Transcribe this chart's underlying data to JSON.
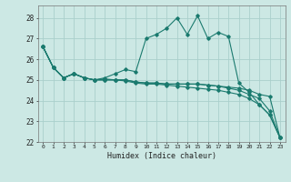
{
  "xlabel": "Humidex (Indice chaleur)",
  "bg_color": "#cce8e4",
  "grid_color": "#aacfcc",
  "line_color": "#1a7a6e",
  "xlim": [
    -0.5,
    23.5
  ],
  "ylim": [
    22,
    28.6
  ],
  "yticks": [
    22,
    23,
    24,
    25,
    26,
    27,
    28
  ],
  "xticks": [
    0,
    1,
    2,
    3,
    4,
    5,
    6,
    7,
    8,
    9,
    10,
    11,
    12,
    13,
    14,
    15,
    16,
    17,
    18,
    19,
    20,
    21,
    22,
    23
  ],
  "series": [
    [
      26.6,
      25.6,
      25.1,
      25.3,
      25.1,
      25.0,
      25.1,
      25.3,
      25.5,
      25.4,
      27.0,
      27.2,
      27.5,
      28.0,
      27.2,
      28.1,
      27.0,
      27.3,
      27.1,
      24.85,
      24.4,
      23.8,
      23.3,
      22.2
    ],
    [
      26.6,
      25.6,
      25.1,
      25.3,
      25.1,
      25.0,
      25.05,
      25.0,
      25.0,
      24.9,
      24.85,
      24.85,
      24.8,
      24.8,
      24.8,
      24.8,
      24.75,
      24.7,
      24.65,
      24.6,
      24.5,
      24.3,
      24.2,
      22.2
    ],
    [
      26.6,
      25.6,
      25.1,
      25.3,
      25.1,
      25.0,
      25.0,
      25.0,
      25.0,
      24.9,
      24.85,
      24.85,
      24.8,
      24.8,
      24.8,
      24.8,
      24.75,
      24.7,
      24.6,
      24.5,
      24.3,
      24.1,
      23.5,
      22.2
    ],
    [
      26.6,
      25.6,
      25.1,
      25.3,
      25.1,
      25.0,
      25.0,
      25.0,
      24.95,
      24.85,
      24.8,
      24.8,
      24.75,
      24.7,
      24.65,
      24.6,
      24.55,
      24.5,
      24.4,
      24.3,
      24.1,
      23.8,
      23.3,
      22.2
    ]
  ]
}
